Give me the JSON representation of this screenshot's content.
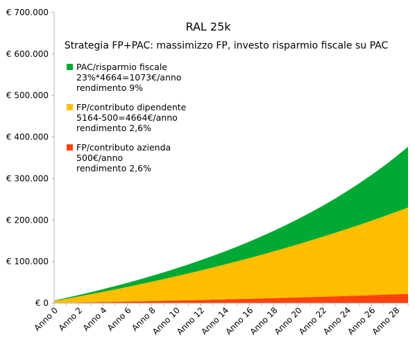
{
  "chart_data": {
    "type": "area",
    "stacked": true,
    "title": "RAL 25k",
    "subtitle": "Strategia FP+PAC: massimizzo FP, investo risparmio fiscale su PAC",
    "categories": [
      "Anno 0",
      "Anno 1",
      "Anno 2",
      "Anno 3",
      "Anno 4",
      "Anno 5",
      "Anno 6",
      "Anno 7",
      "Anno 8",
      "Anno 9",
      "Anno 10",
      "Anno 11",
      "Anno 12",
      "Anno 13",
      "Anno 14",
      "Anno 15",
      "Anno 16",
      "Anno 17",
      "Anno 18",
      "Anno 19",
      "Anno 20",
      "Anno 21",
      "Anno 22",
      "Anno 23",
      "Anno 24",
      "Anno 25",
      "Anno 26",
      "Anno 27",
      "Anno 28",
      "Anno 29"
    ],
    "tick_labels": [
      "Anno 0",
      "Anno 2",
      "Anno 4",
      "Anno 6",
      "Anno 8",
      "Anno 10",
      "Anno 12",
      "Anno 14",
      "Anno 16",
      "Anno 18",
      "Anno 20",
      "Anno 22",
      "Anno 24",
      "Anno 26",
      "Anno 28"
    ],
    "y_tick_labels": [
      "€ 0",
      "€ 100.000",
      "€ 200.000",
      "€ 300.000",
      "€ 400.000",
      "€ 500.000",
      "€ 600.000",
      "€ 700.000"
    ],
    "ylim": [
      0,
      700000
    ],
    "grid": false,
    "legend_position": "top-left",
    "series": [
      {
        "name": "FP/contributo azienda",
        "legend_lines": [
          "500€/anno",
          "rendimento 2,6%"
        ],
        "color": "#ff420e",
        "values": [
          500,
          1013,
          1539,
          2079,
          2633,
          3201,
          3784,
          4382,
          4996,
          5626,
          6272,
          6935,
          7615,
          8313,
          9029,
          9764,
          10518,
          11292,
          12085,
          12898,
          13733,
          14590,
          15469,
          16371,
          17296,
          18246,
          19220,
          20220,
          21245,
          22297
        ]
      },
      {
        "name": "FP/contributo dipendente",
        "legend_lines": [
          "5164-500=4664€/anno",
          "rendimento 2,6%"
        ],
        "color": "#ffbf00",
        "values": [
          4664,
          9449,
          14359,
          19396,
          24563,
          29865,
          35305,
          40886,
          46612,
          52487,
          58515,
          64700,
          71045,
          77555,
          84234,
          91087,
          98118,
          105331,
          112732,
          120326,
          128117,
          136110,
          144312,
          152726,
          161359,
          170216,
          179304,
          188628,
          198194,
          208009
        ]
      },
      {
        "name": "PAC/risparmio fiscale",
        "legend_lines": [
          "23%*4664=1073€/anno",
          "rendimento 9%"
        ],
        "color": "#00a933",
        "values": [
          1073,
          2243,
          3518,
          4907,
          6422,
          8073,
          9873,
          11834,
          13972,
          16302,
          18842,
          21610,
          24628,
          27917,
          31502,
          35410,
          39669,
          44312,
          49372,
          54888,
          60900,
          67453,
          74596,
          82382,
          90868,
          100118,
          110200,
          121190,
          133169,
          146226
        ]
      }
    ]
  }
}
